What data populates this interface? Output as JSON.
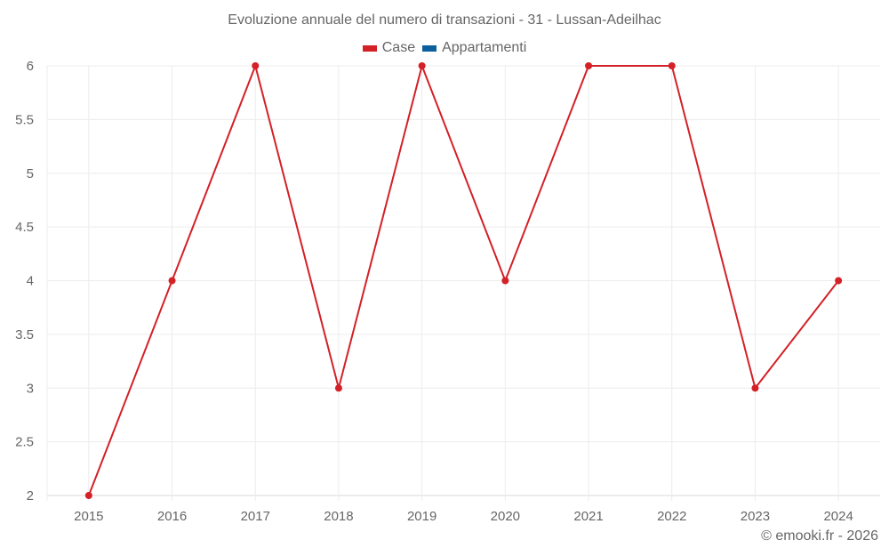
{
  "title": "Evoluzione annuale del numero di transazioni - 31 - Lussan-Adeilhac",
  "legend": [
    {
      "label": "Case",
      "color": "#d32127"
    },
    {
      "label": "Appartamenti",
      "color": "#0b5f9c"
    }
  ],
  "credit": "© emooki.fr - 2026",
  "chart_data": {
    "type": "line",
    "title": "Evoluzione annuale del numero di transazioni - 31 - Lussan-Adeilhac",
    "xlabel": "",
    "ylabel": "",
    "categories": [
      "2015",
      "2016",
      "2017",
      "2018",
      "2019",
      "2020",
      "2021",
      "2022",
      "2023",
      "2024"
    ],
    "series": [
      {
        "name": "Case",
        "color": "#d32127",
        "values": [
          2,
          4,
          6,
          3,
          6,
          4,
          6,
          6,
          3,
          4
        ]
      },
      {
        "name": "Appartamenti",
        "color": "#0b5f9c",
        "values": []
      }
    ],
    "ylim": [
      2,
      6
    ],
    "yticks": [
      "2",
      "2.5",
      "3",
      "3.5",
      "4",
      "4.5",
      "5",
      "5.5",
      "6"
    ],
    "grid": true,
    "legend_position": "top"
  }
}
